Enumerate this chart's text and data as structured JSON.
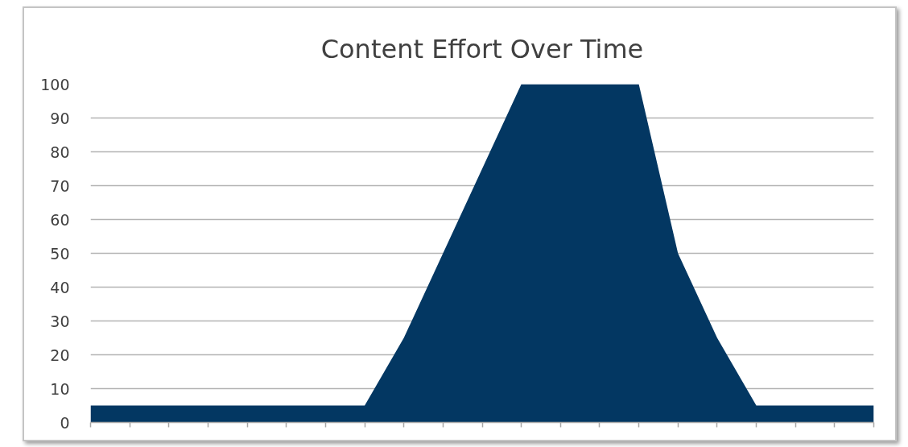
{
  "chart_data": {
    "type": "area",
    "title": "Content Effort Over Time",
    "categories": [
      null,
      null,
      null,
      null,
      null,
      null,
      null,
      null,
      null,
      null,
      null,
      null,
      null,
      null,
      null,
      null,
      null,
      null,
      null,
      null,
      null
    ],
    "values": [
      5,
      5,
      5,
      5,
      5,
      5,
      5,
      5,
      25,
      50,
      75,
      100,
      100,
      100,
      100,
      50,
      25,
      5,
      5,
      5,
      5
    ],
    "color": "#033762",
    "ylim": [
      0,
      100
    ],
    "yticks": [
      0,
      10,
      20,
      30,
      40,
      50,
      60,
      70,
      80,
      90,
      100
    ],
    "grid": "y",
    "tick_labels": "y"
  }
}
